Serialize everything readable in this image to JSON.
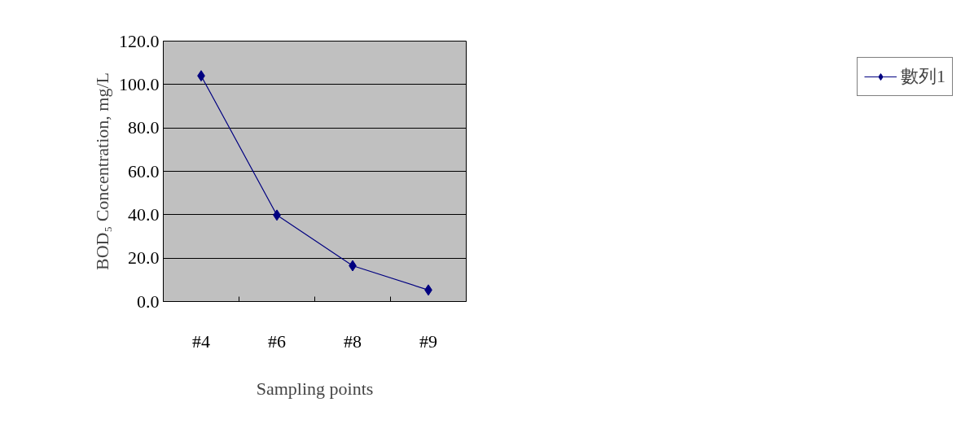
{
  "chart_data": {
    "type": "line",
    "xlabel": "Sampling points",
    "ylabel": "BOD₅ Concentration, mg/L",
    "categories": [
      "#4",
      "#6",
      "#8",
      "#9"
    ],
    "series": [
      {
        "name": "數列1",
        "color": "#000080",
        "values": [
          104.0,
          39.8,
          16.5,
          5.3
        ]
      }
    ],
    "ylim": [
      0,
      120
    ],
    "yticks": [
      {
        "value": 0,
        "label": "0.0"
      },
      {
        "value": 20,
        "label": "20.0"
      },
      {
        "value": 40,
        "label": "40.0"
      },
      {
        "value": 60,
        "label": "60.0"
      },
      {
        "value": 80,
        "label": "80.0"
      },
      {
        "value": 100,
        "label": "100.0"
      },
      {
        "value": 120,
        "label": "120.0"
      }
    ],
    "grid": "y",
    "legend": "right",
    "marker": "diamond",
    "line_style": "solid"
  }
}
